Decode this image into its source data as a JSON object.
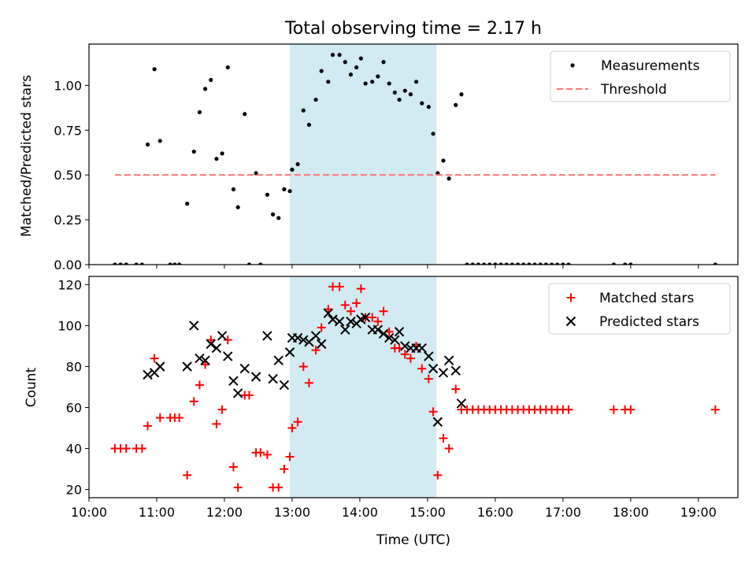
{
  "title": "Total observing time = 2.17 h",
  "chart_data": [
    {
      "type": "scatter",
      "panel": "top",
      "ylabel": "Matched/Predicted stars",
      "ylim": [
        0,
        1.23
      ],
      "yticks": [
        "0.00",
        "0.25",
        "0.50",
        "0.75",
        "1.00"
      ],
      "xlim": [
        "10:00",
        "19:35"
      ],
      "shaded_span": [
        "12:58",
        "15:08"
      ],
      "shade_color": "#add8e6",
      "legend_position": "top-right",
      "series": [
        {
          "name": "Measurements",
          "marker": "dot",
          "color": "#000000",
          "points": [
            [
              "10:23",
              0
            ],
            [
              "10:28",
              0
            ],
            [
              "10:33",
              0
            ],
            [
              "10:42",
              0
            ],
            [
              "10:47",
              0
            ],
            [
              "10:52",
              0.67
            ],
            [
              "10:58",
              1.09
            ],
            [
              "11:03",
              0.69
            ],
            [
              "11:12",
              0
            ],
            [
              "11:16",
              0
            ],
            [
              "11:20",
              0
            ],
            [
              "11:27",
              0.34
            ],
            [
              "11:33",
              0.63
            ],
            [
              "11:38",
              0.85
            ],
            [
              "11:43",
              0.98
            ],
            [
              "11:48",
              1.03
            ],
            [
              "11:53",
              0.59
            ],
            [
              "11:58",
              0.62
            ],
            [
              "12:03",
              1.1
            ],
            [
              "12:08",
              0.42
            ],
            [
              "12:12",
              0.32
            ],
            [
              "12:18",
              0.84
            ],
            [
              "12:22",
              0
            ],
            [
              "12:28",
              0.51
            ],
            [
              "12:32",
              0
            ],
            [
              "12:38",
              0.39
            ],
            [
              "12:43",
              0.28
            ],
            [
              "12:48",
              0.26
            ],
            [
              "12:53",
              0.42
            ],
            [
              "12:58",
              0.41
            ],
            [
              "13:00",
              0.53
            ],
            [
              "13:05",
              0.56
            ],
            [
              "13:10",
              0.86
            ],
            [
              "13:15",
              0.78
            ],
            [
              "13:21",
              0.92
            ],
            [
              "13:26",
              1.08
            ],
            [
              "13:32",
              1.02
            ],
            [
              "13:36",
              1.17
            ],
            [
              "13:42",
              1.17
            ],
            [
              "13:47",
              1.13
            ],
            [
              "13:52",
              1.06
            ],
            [
              "13:57",
              1.1
            ],
            [
              "14:01",
              1.15
            ],
            [
              "14:05",
              1.01
            ],
            [
              "14:11",
              1.02
            ],
            [
              "14:16",
              1.05
            ],
            [
              "14:21",
              1.13
            ],
            [
              "14:26",
              1.01
            ],
            [
              "14:31",
              0.96
            ],
            [
              "14:35",
              0.92
            ],
            [
              "14:40",
              0.97
            ],
            [
              "14:45",
              0.95
            ],
            [
              "14:50",
              1.02
            ],
            [
              "14:55",
              0.9
            ],
            [
              "15:01",
              0.88
            ],
            [
              "15:05",
              0.73
            ],
            [
              "15:09",
              0.51
            ],
            [
              "15:14",
              0.58
            ],
            [
              "15:19",
              0.48
            ],
            [
              "15:25",
              0.89
            ],
            [
              "15:30",
              0.95
            ],
            [
              "15:35",
              0
            ],
            [
              "15:40",
              0
            ],
            [
              "15:45",
              0
            ],
            [
              "15:50",
              0
            ],
            [
              "15:55",
              0
            ],
            [
              "16:00",
              0
            ],
            [
              "16:05",
              0
            ],
            [
              "16:10",
              0
            ],
            [
              "16:15",
              0
            ],
            [
              "16:20",
              0
            ],
            [
              "16:25",
              0
            ],
            [
              "16:30",
              0
            ],
            [
              "16:35",
              0
            ],
            [
              "16:40",
              0
            ],
            [
              "16:45",
              0
            ],
            [
              "16:50",
              0
            ],
            [
              "16:55",
              0
            ],
            [
              "17:00",
              0
            ],
            [
              "17:05",
              0
            ],
            [
              "17:45",
              0
            ],
            [
              "17:55",
              0
            ],
            [
              "18:00",
              0
            ],
            [
              "19:15",
              0
            ]
          ]
        },
        {
          "name": "Threshold",
          "marker": "dashed-line",
          "color": "#ff7777",
          "points": [
            [
              "10:23",
              0.5
            ],
            [
              "19:15",
              0.5
            ]
          ]
        }
      ]
    },
    {
      "type": "scatter",
      "panel": "bottom",
      "xlabel": "Time (UTC)",
      "ylabel": "Count",
      "ylim": [
        16,
        124
      ],
      "yticks": [
        "20",
        "40",
        "60",
        "80",
        "100",
        "120"
      ],
      "xlim": [
        "10:00",
        "19:35"
      ],
      "xticks": [
        "10:00",
        "11:00",
        "12:00",
        "13:00",
        "14:00",
        "15:00",
        "16:00",
        "17:00",
        "18:00",
        "19:00"
      ],
      "shaded_span": [
        "12:58",
        "15:08"
      ],
      "shade_color": "#add8e6",
      "legend_position": "top-right",
      "series": [
        {
          "name": "Matched stars",
          "marker": "plus",
          "color": "#ff0000",
          "points": [
            [
              "10:23",
              40
            ],
            [
              "10:28",
              40
            ],
            [
              "10:33",
              40
            ],
            [
              "10:42",
              40
            ],
            [
              "10:47",
              40
            ],
            [
              "10:52",
              51
            ],
            [
              "10:58",
              84
            ],
            [
              "11:03",
              55
            ],
            [
              "11:12",
              55
            ],
            [
              "11:16",
              55
            ],
            [
              "11:20",
              55
            ],
            [
              "11:27",
              27
            ],
            [
              "11:33",
              63
            ],
            [
              "11:38",
              71
            ],
            [
              "11:43",
              81
            ],
            [
              "11:48",
              93
            ],
            [
              "11:53",
              52
            ],
            [
              "11:58",
              59
            ],
            [
              "12:03",
              93
            ],
            [
              "12:08",
              31
            ],
            [
              "12:12",
              21
            ],
            [
              "12:18",
              66
            ],
            [
              "12:22",
              66
            ],
            [
              "12:28",
              38
            ],
            [
              "12:32",
              38
            ],
            [
              "12:38",
              37
            ],
            [
              "12:43",
              21
            ],
            [
              "12:48",
              21
            ],
            [
              "12:53",
              30
            ],
            [
              "12:58",
              36
            ],
            [
              "13:00",
              50
            ],
            [
              "13:05",
              53
            ],
            [
              "13:10",
              80
            ],
            [
              "13:15",
              72
            ],
            [
              "13:21",
              88
            ],
            [
              "13:26",
              99
            ],
            [
              "13:32",
              108
            ],
            [
              "13:36",
              119
            ],
            [
              "13:42",
              119
            ],
            [
              "13:47",
              110
            ],
            [
              "13:52",
              107
            ],
            [
              "13:57",
              111
            ],
            [
              "14:01",
              118
            ],
            [
              "14:05",
              104
            ],
            [
              "14:11",
              104
            ],
            [
              "14:16",
              102
            ],
            [
              "14:21",
              107
            ],
            [
              "14:26",
              97
            ],
            [
              "14:31",
              89
            ],
            [
              "14:35",
              89
            ],
            [
              "14:40",
              86
            ],
            [
              "14:45",
              84
            ],
            [
              "14:50",
              90
            ],
            [
              "14:55",
              79
            ],
            [
              "15:01",
              74
            ],
            [
              "15:05",
              58
            ],
            [
              "15:09",
              27
            ],
            [
              "15:14",
              45
            ],
            [
              "15:19",
              40
            ],
            [
              "15:25",
              69
            ],
            [
              "15:30",
              59
            ],
            [
              "15:35",
              59
            ],
            [
              "15:40",
              59
            ],
            [
              "15:45",
              59
            ],
            [
              "15:50",
              59
            ],
            [
              "15:55",
              59
            ],
            [
              "16:00",
              59
            ],
            [
              "16:05",
              59
            ],
            [
              "16:10",
              59
            ],
            [
              "16:15",
              59
            ],
            [
              "16:20",
              59
            ],
            [
              "16:25",
              59
            ],
            [
              "16:30",
              59
            ],
            [
              "16:35",
              59
            ],
            [
              "16:40",
              59
            ],
            [
              "16:45",
              59
            ],
            [
              "16:50",
              59
            ],
            [
              "16:55",
              59
            ],
            [
              "17:00",
              59
            ],
            [
              "17:05",
              59
            ],
            [
              "17:45",
              59
            ],
            [
              "17:55",
              59
            ],
            [
              "18:00",
              59
            ],
            [
              "19:15",
              59
            ]
          ]
        },
        {
          "name": "Predicted stars",
          "marker": "x",
          "color": "#000000",
          "points": [
            [
              "10:52",
              76
            ],
            [
              "10:58",
              77
            ],
            [
              "11:03",
              80
            ],
            [
              "11:27",
              80
            ],
            [
              "11:33",
              100
            ],
            [
              "11:38",
              84
            ],
            [
              "11:43",
              83
            ],
            [
              "11:48",
              91
            ],
            [
              "11:53",
              89
            ],
            [
              "11:58",
              95
            ],
            [
              "12:03",
              85
            ],
            [
              "12:08",
              73
            ],
            [
              "12:12",
              67
            ],
            [
              "12:18",
              79
            ],
            [
              "12:28",
              75
            ],
            [
              "12:38",
              95
            ],
            [
              "12:43",
              74
            ],
            [
              "12:48",
              83
            ],
            [
              "12:53",
              71
            ],
            [
              "12:58",
              87
            ],
            [
              "13:00",
              94
            ],
            [
              "13:05",
              94
            ],
            [
              "13:10",
              93
            ],
            [
              "13:15",
              92
            ],
            [
              "13:21",
              95
            ],
            [
              "13:26",
              91
            ],
            [
              "13:32",
              106
            ],
            [
              "13:36",
              103
            ],
            [
              "13:42",
              102
            ],
            [
              "13:47",
              98
            ],
            [
              "13:52",
              102
            ],
            [
              "13:57",
              101
            ],
            [
              "14:01",
              103
            ],
            [
              "14:05",
              104
            ],
            [
              "14:11",
              98
            ],
            [
              "14:16",
              98
            ],
            [
              "14:21",
              96
            ],
            [
              "14:26",
              94
            ],
            [
              "14:31",
              93
            ],
            [
              "14:35",
              97
            ],
            [
              "14:40",
              90
            ],
            [
              "14:45",
              89
            ],
            [
              "14:50",
              89
            ],
            [
              "14:55",
              89
            ],
            [
              "15:01",
              85
            ],
            [
              "15:05",
              79
            ],
            [
              "15:09",
              53
            ],
            [
              "15:14",
              77
            ],
            [
              "15:19",
              83
            ],
            [
              "15:25",
              78
            ],
            [
              "15:30",
              62
            ]
          ]
        }
      ]
    }
  ]
}
